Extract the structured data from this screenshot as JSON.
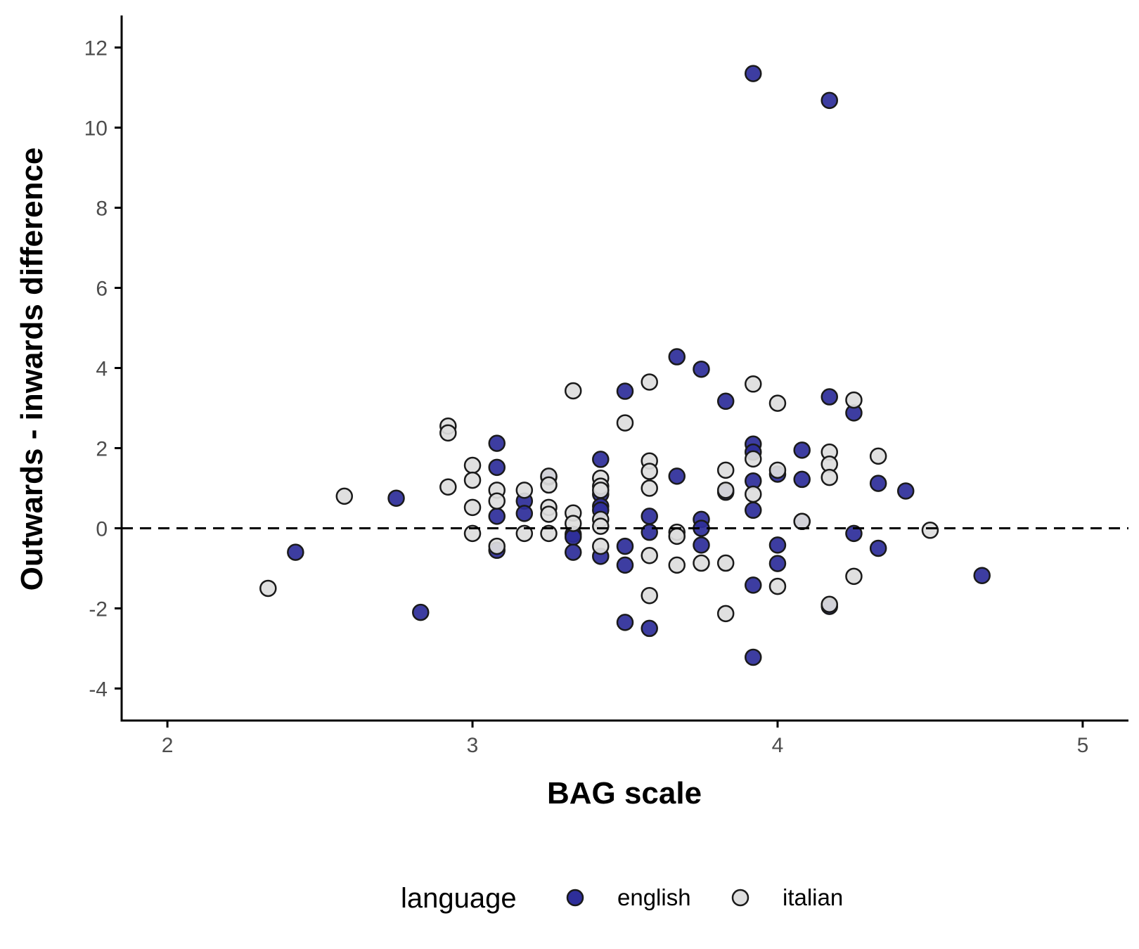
{
  "chart_data": {
    "type": "scatter",
    "xlabel": "BAG scale",
    "ylabel": "Outwards - inwards difference",
    "xlim": [
      1.85,
      5.15
    ],
    "ylim": [
      -4.8,
      12.8
    ],
    "x_ticks": [
      2,
      3,
      4,
      5
    ],
    "y_ticks": [
      -4,
      -2,
      0,
      2,
      4,
      6,
      8,
      10,
      12
    ],
    "x_tick_labels": [
      "2",
      "3",
      "4",
      "5"
    ],
    "y_tick_labels": [
      "-4",
      "-2",
      "0",
      "2",
      "4",
      "6",
      "8",
      "10",
      "12"
    ],
    "reference_line": {
      "y": 0,
      "style": "dashed"
    },
    "grid": false,
    "legend": {
      "title": "language",
      "position": "bottom"
    },
    "series": [
      {
        "name": "english",
        "color": "#2e2e9a",
        "points": [
          [
            2.42,
            -0.6
          ],
          [
            2.75,
            0.75
          ],
          [
            2.83,
            -2.1
          ],
          [
            3.08,
            2.12
          ],
          [
            3.08,
            1.52
          ],
          [
            3.08,
            0.3
          ],
          [
            3.08,
            -0.55
          ],
          [
            3.17,
            0.68
          ],
          [
            3.17,
            0.37
          ],
          [
            3.25,
            1.28
          ],
          [
            3.33,
            -0.15
          ],
          [
            3.33,
            -0.22
          ],
          [
            3.33,
            -0.6
          ],
          [
            3.42,
            1.72
          ],
          [
            3.42,
            0.85
          ],
          [
            3.42,
            0.55
          ],
          [
            3.42,
            0.45
          ],
          [
            3.42,
            -0.7
          ],
          [
            3.5,
            3.42
          ],
          [
            3.5,
            -0.45
          ],
          [
            3.5,
            -0.92
          ],
          [
            3.5,
            -2.35
          ],
          [
            3.58,
            0.3
          ],
          [
            3.58,
            -0.1
          ],
          [
            3.58,
            -2.5
          ],
          [
            3.67,
            4.28
          ],
          [
            3.67,
            1.3
          ],
          [
            3.75,
            3.97
          ],
          [
            3.75,
            0.22
          ],
          [
            3.75,
            0.0
          ],
          [
            3.75,
            -0.42
          ],
          [
            3.83,
            3.17
          ],
          [
            3.83,
            0.9
          ],
          [
            3.92,
            11.35
          ],
          [
            3.92,
            2.1
          ],
          [
            3.92,
            1.9
          ],
          [
            3.92,
            1.18
          ],
          [
            3.92,
            0.45
          ],
          [
            3.92,
            -1.42
          ],
          [
            3.92,
            -3.22
          ],
          [
            4.0,
            1.35
          ],
          [
            4.0,
            -0.42
          ],
          [
            4.0,
            -0.88
          ],
          [
            4.08,
            1.95
          ],
          [
            4.08,
            1.22
          ],
          [
            4.08,
            0.17
          ],
          [
            4.17,
            10.68
          ],
          [
            4.17,
            3.28
          ],
          [
            4.17,
            -1.95
          ],
          [
            4.25,
            2.88
          ],
          [
            4.25,
            -0.13
          ],
          [
            4.33,
            1.12
          ],
          [
            4.33,
            -0.5
          ],
          [
            4.42,
            0.93
          ],
          [
            4.67,
            -1.18
          ]
        ]
      },
      {
        "name": "italian",
        "color": "#dedede",
        "points": [
          [
            2.33,
            -1.5
          ],
          [
            2.58,
            0.8
          ],
          [
            2.92,
            2.55
          ],
          [
            2.92,
            2.38
          ],
          [
            2.92,
            1.03
          ],
          [
            3.0,
            1.57
          ],
          [
            3.0,
            1.2
          ],
          [
            3.0,
            0.52
          ],
          [
            3.0,
            -0.13
          ],
          [
            3.08,
            0.95
          ],
          [
            3.08,
            0.68
          ],
          [
            3.08,
            -0.45
          ],
          [
            3.17,
            0.95
          ],
          [
            3.17,
            -0.13
          ],
          [
            3.25,
            1.3
          ],
          [
            3.25,
            1.08
          ],
          [
            3.25,
            0.52
          ],
          [
            3.25,
            0.35
          ],
          [
            3.25,
            -0.13
          ],
          [
            3.33,
            3.43
          ],
          [
            3.33,
            0.38
          ],
          [
            3.33,
            0.12
          ],
          [
            3.42,
            1.25
          ],
          [
            3.42,
            1.05
          ],
          [
            3.42,
            0.95
          ],
          [
            3.42,
            0.22
          ],
          [
            3.42,
            0.05
          ],
          [
            3.42,
            -0.45
          ],
          [
            3.5,
            2.63
          ],
          [
            3.58,
            3.65
          ],
          [
            3.58,
            1.68
          ],
          [
            3.58,
            1.42
          ],
          [
            3.58,
            1.0
          ],
          [
            3.58,
            -0.68
          ],
          [
            3.58,
            -1.68
          ],
          [
            3.67,
            -0.1
          ],
          [
            3.67,
            -0.2
          ],
          [
            3.67,
            -0.92
          ],
          [
            3.75,
            -0.87
          ],
          [
            3.83,
            1.45
          ],
          [
            3.83,
            0.95
          ],
          [
            3.83,
            -0.87
          ],
          [
            3.83,
            -2.13
          ],
          [
            3.92,
            3.6
          ],
          [
            3.92,
            1.73
          ],
          [
            3.92,
            0.85
          ],
          [
            4.0,
            3.12
          ],
          [
            4.0,
            1.45
          ],
          [
            4.0,
            -1.45
          ],
          [
            4.08,
            0.17
          ],
          [
            4.17,
            1.9
          ],
          [
            4.17,
            1.6
          ],
          [
            4.17,
            1.27
          ],
          [
            4.17,
            -1.9
          ],
          [
            4.25,
            3.2
          ],
          [
            4.25,
            -1.2
          ],
          [
            4.33,
            1.8
          ],
          [
            4.5,
            -0.05
          ]
        ]
      }
    ]
  }
}
